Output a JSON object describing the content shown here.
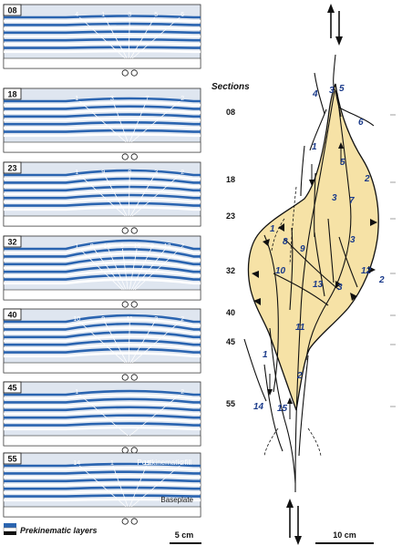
{
  "panels": [
    {
      "id": "08",
      "fault_numbers": [
        "4",
        "1",
        "3",
        "5",
        "6"
      ]
    },
    {
      "id": "18",
      "fault_numbers": [
        "1",
        "3",
        "7",
        "2"
      ]
    },
    {
      "id": "23",
      "fault_numbers": [
        "1",
        "9",
        "8",
        "3",
        "2"
      ]
    },
    {
      "id": "32",
      "fault_numbers": [
        "1",
        "8",
        "10",
        "9",
        "13",
        "3",
        "12",
        "2"
      ]
    },
    {
      "id": "40",
      "fault_numbers": [
        "10",
        "9",
        "11",
        "3",
        "2"
      ]
    },
    {
      "id": "45",
      "fault_numbers": [
        "1",
        "2"
      ]
    },
    {
      "id": "55",
      "fault_numbers": [
        "14",
        "1",
        "15",
        "2"
      ]
    }
  ],
  "postkinematic_label": "Postkinematic fill",
  "baseplate_label": "Baseplate",
  "legend": {
    "label": "Prekinematic layers",
    "colors": [
      "#2a64b0",
      "#ffffff",
      "#111111"
    ]
  },
  "left_scale": "5 cm",
  "map": {
    "sections_title": "Sections",
    "section_labels": [
      "08",
      "18",
      "23",
      "32",
      "40",
      "45",
      "55"
    ],
    "fault_labels": [
      {
        "text": "3"
      },
      {
        "text": "5"
      },
      {
        "text": "4"
      },
      {
        "text": "6"
      },
      {
        "text": "1"
      },
      {
        "text": "5"
      },
      {
        "text": "2"
      },
      {
        "text": "3"
      },
      {
        "text": "7"
      },
      {
        "text": "3"
      },
      {
        "text": "1"
      },
      {
        "text": "8"
      },
      {
        "text": "9"
      },
      {
        "text": "10"
      },
      {
        "text": "13"
      },
      {
        "text": "3"
      },
      {
        "text": "12"
      },
      {
        "text": "2"
      },
      {
        "text": "11"
      },
      {
        "text": "1"
      },
      {
        "text": "2"
      },
      {
        "text": "14"
      },
      {
        "text": "15"
      }
    ],
    "scale": "10 cm"
  },
  "colors": {
    "layer_blue": "#2a64b0",
    "fill_beige": "#f6e2a6",
    "fault_outline": "#111111"
  }
}
